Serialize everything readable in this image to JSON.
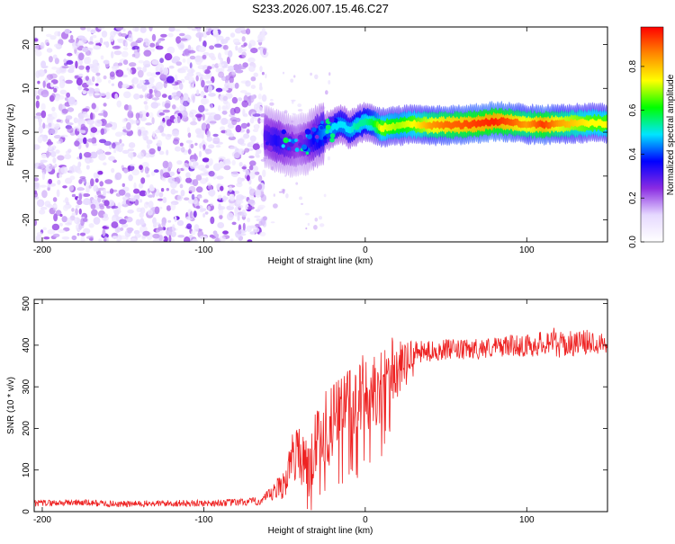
{
  "title": "S233.2026.007.15.46.C27",
  "chart_data": [
    {
      "type": "heatmap",
      "name": "spectrogram",
      "xlabel": "Height of straight line (km)",
      "ylabel": "Frequency (Hz)",
      "xlim": [
        -205,
        150
      ],
      "ylim": [
        -25,
        24
      ],
      "xticks": [
        -200,
        -100,
        0,
        100
      ],
      "yticks": [
        -20,
        -10,
        0,
        10,
        20
      ],
      "colorbar": {
        "label": "Normalized spectral amplitude",
        "range": [
          0.0,
          0.98
        ],
        "ticks": [
          0.0,
          0.2,
          0.4,
          0.6,
          0.8
        ],
        "colors": [
          "#ffffff",
          "#e6d9ff",
          "#8a2be2",
          "#0000ff",
          "#00e5ff",
          "#00ff00",
          "#ffff00",
          "#ff8800",
          "#ff0000"
        ]
      },
      "noise_region_x": [
        -205,
        -62
      ],
      "signal_ridge": {
        "x": [
          -62,
          -55,
          -48,
          -42,
          -36,
          -30,
          -25,
          -20,
          -15,
          -10,
          -5,
          0,
          5,
          10,
          20,
          30,
          40,
          50,
          60,
          70,
          80,
          90,
          100,
          110,
          120,
          130,
          140,
          150
        ],
        "frequency": [
          -1,
          -2,
          -3,
          -3,
          -2.5,
          -1,
          0,
          1,
          2,
          0.5,
          1.5,
          2.5,
          2,
          1,
          1.5,
          1.8,
          1.5,
          1.6,
          1.7,
          2.0,
          2.5,
          2.3,
          1.8,
          1.7,
          1.9,
          2.0,
          2.1,
          2.0
        ],
        "amplitude": [
          0.3,
          0.35,
          0.3,
          0.25,
          0.3,
          0.4,
          0.45,
          0.5,
          0.5,
          0.5,
          0.55,
          0.55,
          0.6,
          0.75,
          0.7,
          0.75,
          0.85,
          0.9,
          0.92,
          0.95,
          0.97,
          0.92,
          0.85,
          0.95,
          0.85,
          0.8,
          0.75,
          0.75
        ]
      }
    },
    {
      "type": "line",
      "name": "snr",
      "xlabel": "Height of straight line (km)",
      "ylabel": "SNR (10 * v/v)",
      "xlim": [
        -205,
        150
      ],
      "ylim": [
        0,
        510
      ],
      "xticks": [
        -200,
        -100,
        0,
        100
      ],
      "yticks": [
        0,
        100,
        200,
        300,
        400,
        500
      ],
      "series": [
        {
          "name": "SNR",
          "color": "#ee2222",
          "x": [
            -205,
            -180,
            -150,
            -120,
            -100,
            -80,
            -65,
            -58,
            -50,
            -45,
            -40,
            -35,
            -30,
            -25,
            -20,
            -15,
            -10,
            -5,
            0,
            5,
            10,
            15,
            20,
            25,
            30,
            40,
            50,
            60,
            70,
            80,
            90,
            100,
            110,
            115,
            120,
            130,
            140,
            150
          ],
          "y": [
            20,
            22,
            18,
            20,
            20,
            22,
            25,
            40,
            70,
            130,
            150,
            110,
            170,
            200,
            220,
            240,
            260,
            280,
            290,
            300,
            320,
            340,
            350,
            370,
            380,
            385,
            390,
            388,
            392,
            395,
            400,
            398,
            405,
            415,
            400,
            405,
            408,
            410
          ],
          "spread": [
            8,
            8,
            8,
            8,
            8,
            9,
            10,
            20,
            40,
            60,
            70,
            70,
            80,
            90,
            90,
            95,
            95,
            95,
            95,
            95,
            90,
            85,
            75,
            40,
            30,
            25,
            25,
            25,
            25,
            25,
            25,
            28,
            30,
            35,
            32,
            30,
            30,
            30
          ]
        }
      ]
    }
  ]
}
